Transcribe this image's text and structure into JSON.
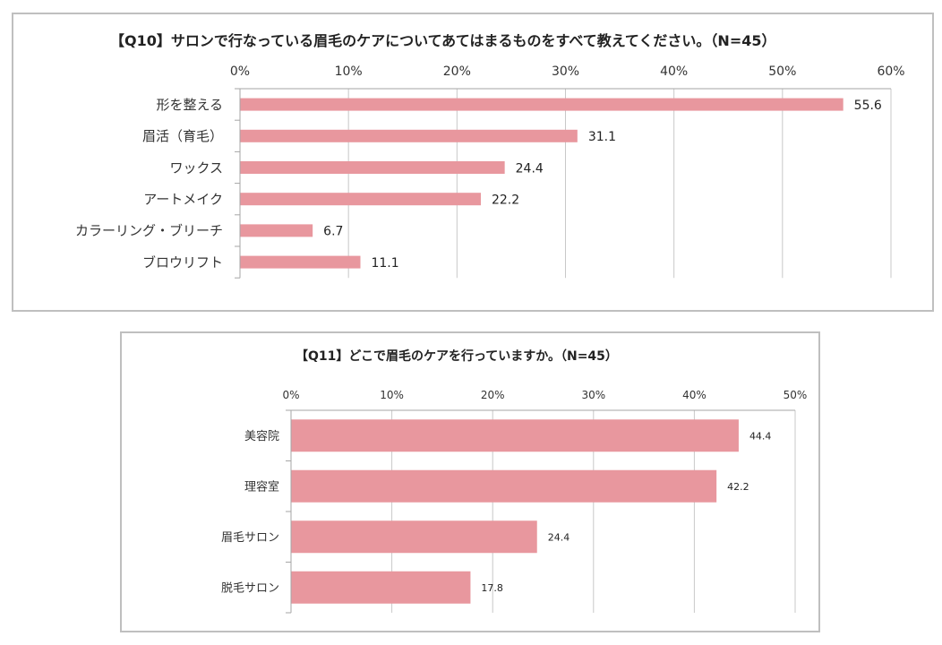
{
  "chart_data": [
    {
      "type": "bar",
      "orientation": "horizontal",
      "title": "【Q10】サロンで行なっている眉毛のケアについてあてはまるものをすべて教えてください。（N=45）",
      "categories": [
        "形を整える",
        "眉活（育毛）",
        "ワックス",
        "アートメイク",
        "カラーリング・ブリーチ",
        "ブロウリフト"
      ],
      "values": [
        55.6,
        31.1,
        24.4,
        22.2,
        6.7,
        11.1
      ],
      "value_labels": [
        "55.6",
        "31.1",
        "24.4",
        "22.2",
        "6.7",
        "11.1"
      ],
      "xlim": [
        0,
        60
      ],
      "xticks": [
        0,
        10,
        20,
        30,
        40,
        50,
        60
      ],
      "xtick_labels": [
        "0%",
        "10%",
        "20%",
        "30%",
        "40%",
        "50%",
        "60%"
      ],
      "axis_position": "top",
      "grid": true,
      "bar_color": "#e8979e"
    },
    {
      "type": "bar",
      "orientation": "horizontal",
      "title": "【Q11】どこで眉毛のケアを行っていますか。（N=45）",
      "categories": [
        "美容院",
        "理容室",
        "眉毛サロン",
        "脱毛サロン"
      ],
      "values": [
        44.4,
        42.2,
        24.4,
        17.8
      ],
      "value_labels": [
        "44.4",
        "42.2",
        "24.4",
        "17.8"
      ],
      "xlim": [
        0,
        50
      ],
      "xticks": [
        0,
        10,
        20,
        30,
        40,
        50
      ],
      "xtick_labels": [
        "0%",
        "10%",
        "20%",
        "30%",
        "40%",
        "50%"
      ],
      "axis_position": "top",
      "grid": true,
      "bar_color": "#e8979e"
    }
  ]
}
